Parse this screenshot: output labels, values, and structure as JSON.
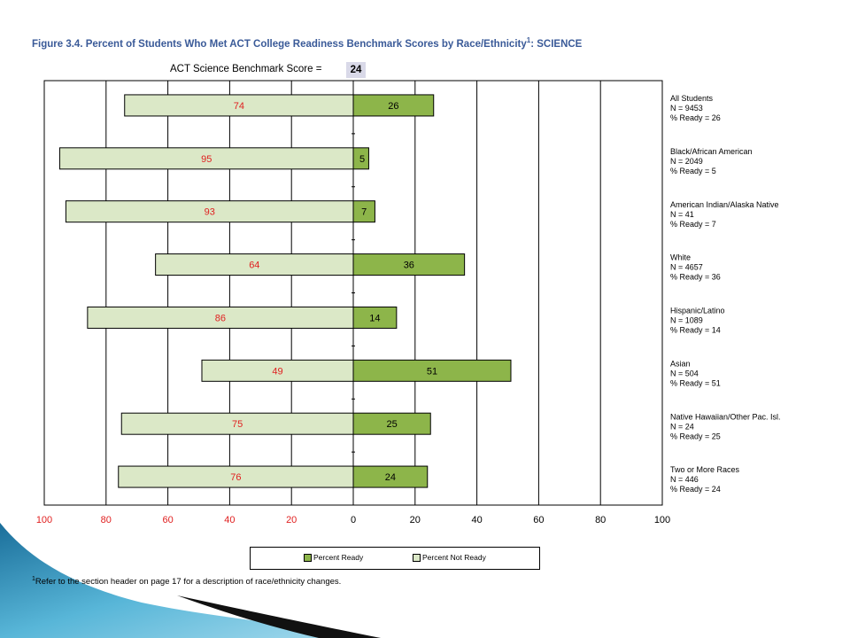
{
  "figure": {
    "title": "Figure 3.4.  Percent of Students Who Met ACT College Readiness Benchmark Scores by Race/Ethnicity",
    "title_sup": "1",
    "title_suffix": ": SCIENCE",
    "benchmark_label": "ACT Science Benchmark Score =",
    "benchmark_value": "24",
    "footnote_sup": "1",
    "footnote": "Refer to the section header on page 17 for a description of race/ethnicity changes."
  },
  "legend": {
    "ready_label": "Percent Ready",
    "not_ready_label": "Percent Not Ready"
  },
  "colors": {
    "ready": "#8db54a",
    "not_ready": "#dbe8c7",
    "not_ready_text": "#e02020",
    "title": "#3a5a98"
  },
  "chart_data": {
    "type": "bar",
    "orientation": "horizontal-diverging",
    "categories": [
      {
        "name": "All Students",
        "n": "N = 9453",
        "ready_text": "% Ready = 26"
      },
      {
        "name": "Black/African American",
        "n": "N = 2049",
        "ready_text": "% Ready = 5"
      },
      {
        "name": "American Indian/Alaska Native",
        "n": "N = 41",
        "ready_text": "% Ready = 7"
      },
      {
        "name": "White",
        "n": "N = 4657",
        "ready_text": "% Ready = 36"
      },
      {
        "name": "Hispanic/Latino",
        "n": "N = 1089",
        "ready_text": "% Ready = 14"
      },
      {
        "name": "Asian",
        "n": "N = 504",
        "ready_text": "% Ready = 51"
      },
      {
        "name": "Native Hawaiian/Other Pac. Isl.",
        "n": "N = 24",
        "ready_text": "% Ready = 25"
      },
      {
        "name": "Two or More Races",
        "n": "N = 446",
        "ready_text": "% Ready = 24"
      }
    ],
    "series": [
      {
        "name": "Percent Ready",
        "values": [
          26,
          5,
          7,
          36,
          14,
          51,
          25,
          24
        ]
      },
      {
        "name": "Percent Not Ready",
        "values": [
          74,
          95,
          93,
          64,
          86,
          49,
          75,
          76
        ]
      }
    ],
    "x_ticks_left": [
      "100",
      "80",
      "60",
      "40",
      "20"
    ],
    "x_ticks_right": [
      "0",
      "20",
      "40",
      "60",
      "80",
      "100"
    ],
    "xlim": [
      -100,
      100
    ],
    "grid": true
  }
}
